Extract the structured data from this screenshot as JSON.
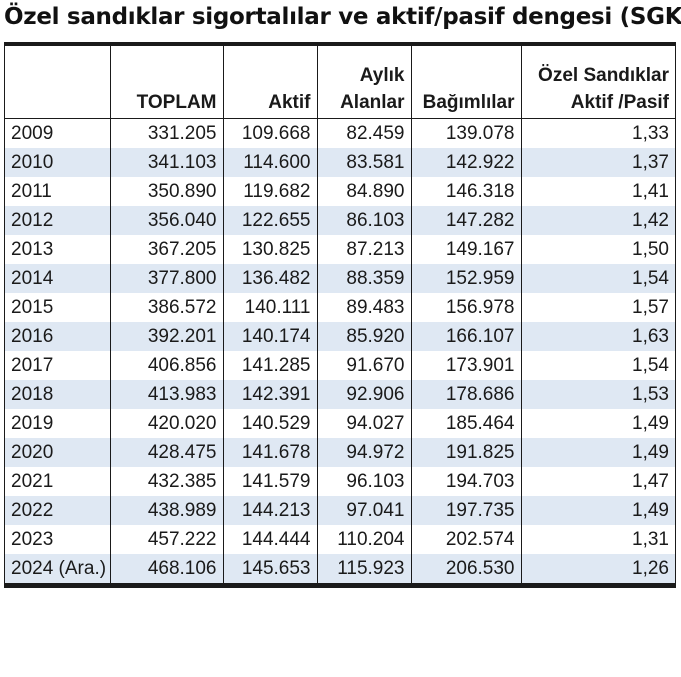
{
  "title": "Özel sandıklar sigortalılar ve aktif/pasif dengesi (SGK)",
  "table": {
    "headers": [
      {
        "line1": "",
        "line2": ""
      },
      {
        "line1": "",
        "line2": "TOPLAM"
      },
      {
        "line1": "",
        "line2": "Aktif"
      },
      {
        "line1": "Aylık",
        "line2": "Alanlar"
      },
      {
        "line1": "",
        "line2": "Bağımlılar"
      },
      {
        "line1": "Özel Sandıklar",
        "line2": "Aktif /Pasif"
      }
    ],
    "rows": [
      [
        "2009",
        "331.205",
        "109.668",
        "82.459",
        "139.078",
        "1,33"
      ],
      [
        "2010",
        "341.103",
        "114.600",
        "83.581",
        "142.922",
        "1,37"
      ],
      [
        "2011",
        "350.890",
        "119.682",
        "84.890",
        "146.318",
        "1,41"
      ],
      [
        "2012",
        "356.040",
        "122.655",
        "86.103",
        "147.282",
        "1,42"
      ],
      [
        "2013",
        "367.205",
        "130.825",
        "87.213",
        "149.167",
        "1,50"
      ],
      [
        "2014",
        "377.800",
        "136.482",
        "88.359",
        "152.959",
        "1,54"
      ],
      [
        "2015",
        "386.572",
        "140.111",
        "89.483",
        "156.978",
        "1,57"
      ],
      [
        "2016",
        "392.201",
        "140.174",
        "85.920",
        "166.107",
        "1,63"
      ],
      [
        "2017",
        "406.856",
        "141.285",
        "91.670",
        "173.901",
        "1,54"
      ],
      [
        "2018",
        "413.983",
        "142.391",
        "92.906",
        "178.686",
        "1,53"
      ],
      [
        "2019",
        "420.020",
        "140.529",
        "94.027",
        "185.464",
        "1,49"
      ],
      [
        "2020",
        "428.475",
        "141.678",
        "94.972",
        "191.825",
        "1,49"
      ],
      [
        "2021",
        "432.385",
        "141.579",
        "96.103",
        "194.703",
        "1,47"
      ],
      [
        "2022",
        "438.989",
        "144.213",
        "97.041",
        "197.735",
        "1,49"
      ],
      [
        "2023",
        "457.222",
        "144.444",
        "110.204",
        "202.574",
        "1,31"
      ],
      [
        "2024 (Ara.)",
        "468.106",
        "145.653",
        "115.923",
        "206.530",
        "1,26"
      ]
    ]
  },
  "colors": {
    "stripe": "#dfe8f3",
    "border": "#1a1a1a",
    "text": "#1a1a1a"
  }
}
